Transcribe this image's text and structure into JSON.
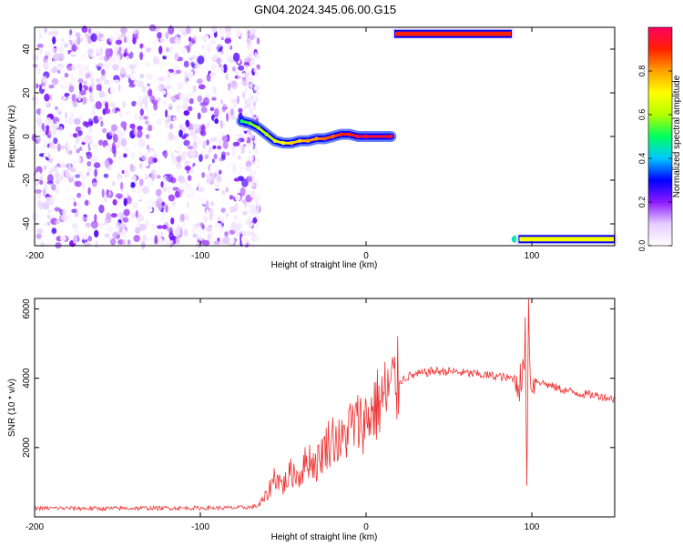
{
  "title": "GN04.2024.345.06.00.G15",
  "chart_data": [
    {
      "type": "heatmap",
      "xlabel": "Height of straight line (km)",
      "ylabel": "Frequency (Hz)",
      "xlim": [
        -200,
        150
      ],
      "ylim": [
        -50,
        50
      ],
      "xticks": [
        -200,
        -100,
        0,
        100
      ],
      "yticks": [
        -40,
        -20,
        0,
        20,
        40
      ],
      "colorbar": {
        "label": "Normalized spectral amplitude",
        "ticks": [
          "0.0",
          "0.2",
          "0.4",
          "0.6",
          "0.8"
        ],
        "colormap": [
          "#ffffff",
          "#e6ccff",
          "#8c1aff",
          "#0000ff",
          "#00c8ff",
          "#00ff60",
          "#b4ff00",
          "#ffff00",
          "#ffa000",
          "#ff2000",
          "#ff0064"
        ]
      },
      "noise_region": {
        "x": [
          -200,
          -65
        ],
        "amplitude": [
          0.0,
          0.25
        ]
      },
      "ridge": [
        {
          "x": -75,
          "y": 7,
          "a": 0.5
        },
        {
          "x": -70,
          "y": 6,
          "a": 0.55
        },
        {
          "x": -65,
          "y": 4,
          "a": 0.6
        },
        {
          "x": -60,
          "y": 1,
          "a": 0.6
        },
        {
          "x": -55,
          "y": -2,
          "a": 0.65
        },
        {
          "x": -50,
          "y": -3,
          "a": 0.7
        },
        {
          "x": -45,
          "y": -3,
          "a": 0.75
        },
        {
          "x": -40,
          "y": -2,
          "a": 0.75
        },
        {
          "x": -35,
          "y": -2,
          "a": 0.8
        },
        {
          "x": -30,
          "y": -1,
          "a": 0.8
        },
        {
          "x": -25,
          "y": -1,
          "a": 0.85
        },
        {
          "x": -20,
          "y": 0,
          "a": 0.85
        },
        {
          "x": -15,
          "y": 1,
          "a": 0.9
        },
        {
          "x": -10,
          "y": 1,
          "a": 0.9
        },
        {
          "x": -5,
          "y": 0,
          "a": 0.95
        },
        {
          "x": 0,
          "y": 0,
          "a": 0.95
        },
        {
          "x": 15,
          "y": 0,
          "a": 0.95
        }
      ],
      "aliased_bands": [
        {
          "x": [
            17,
            88
          ],
          "y": 47,
          "a": 0.9
        },
        {
          "x": 90,
          "y": -47,
          "a": 0.45
        },
        {
          "x": [
            92,
            150
          ],
          "y": -47,
          "a": 0.7
        }
      ]
    },
    {
      "type": "line",
      "xlabel": "Height of straight line (km)",
      "ylabel": "SNR (10 * v/v)",
      "xlim": [
        -200,
        150
      ],
      "ylim": [
        0,
        6300
      ],
      "xticks": [
        -200,
        -100,
        0,
        100
      ],
      "yticks": [
        2000,
        4000,
        6000
      ],
      "color": "#ee3333",
      "series": [
        {
          "x": [
            -200,
            -180,
            -160,
            -140,
            -120,
            -100,
            -80,
            -70,
            -65,
            -60,
            -55,
            -50,
            -45,
            -40,
            -35,
            -30,
            -25,
            -20,
            -15,
            -10,
            -5,
            0,
            5,
            10,
            15,
            20,
            25,
            30,
            35,
            40,
            50,
            60,
            70,
            80,
            85,
            90,
            93,
            95,
            96,
            97,
            98,
            99,
            100,
            102,
            105,
            110,
            120,
            130,
            140,
            150
          ],
          "values": [
            250,
            250,
            240,
            250,
            255,
            255,
            260,
            275,
            320,
            600,
            1200,
            900,
            1300,
            1200,
            1700,
            1500,
            2000,
            2300,
            2100,
            2600,
            2700,
            2800,
            3150,
            3400,
            3700,
            3900,
            4050,
            4100,
            4150,
            4200,
            4200,
            4150,
            4100,
            4050,
            4000,
            4000,
            3900,
            4100,
            5200,
            1300,
            6200,
            3900,
            4000,
            3950,
            3900,
            3800,
            3650,
            3550,
            3500,
            3400
          ]
        }
      ]
    }
  ]
}
